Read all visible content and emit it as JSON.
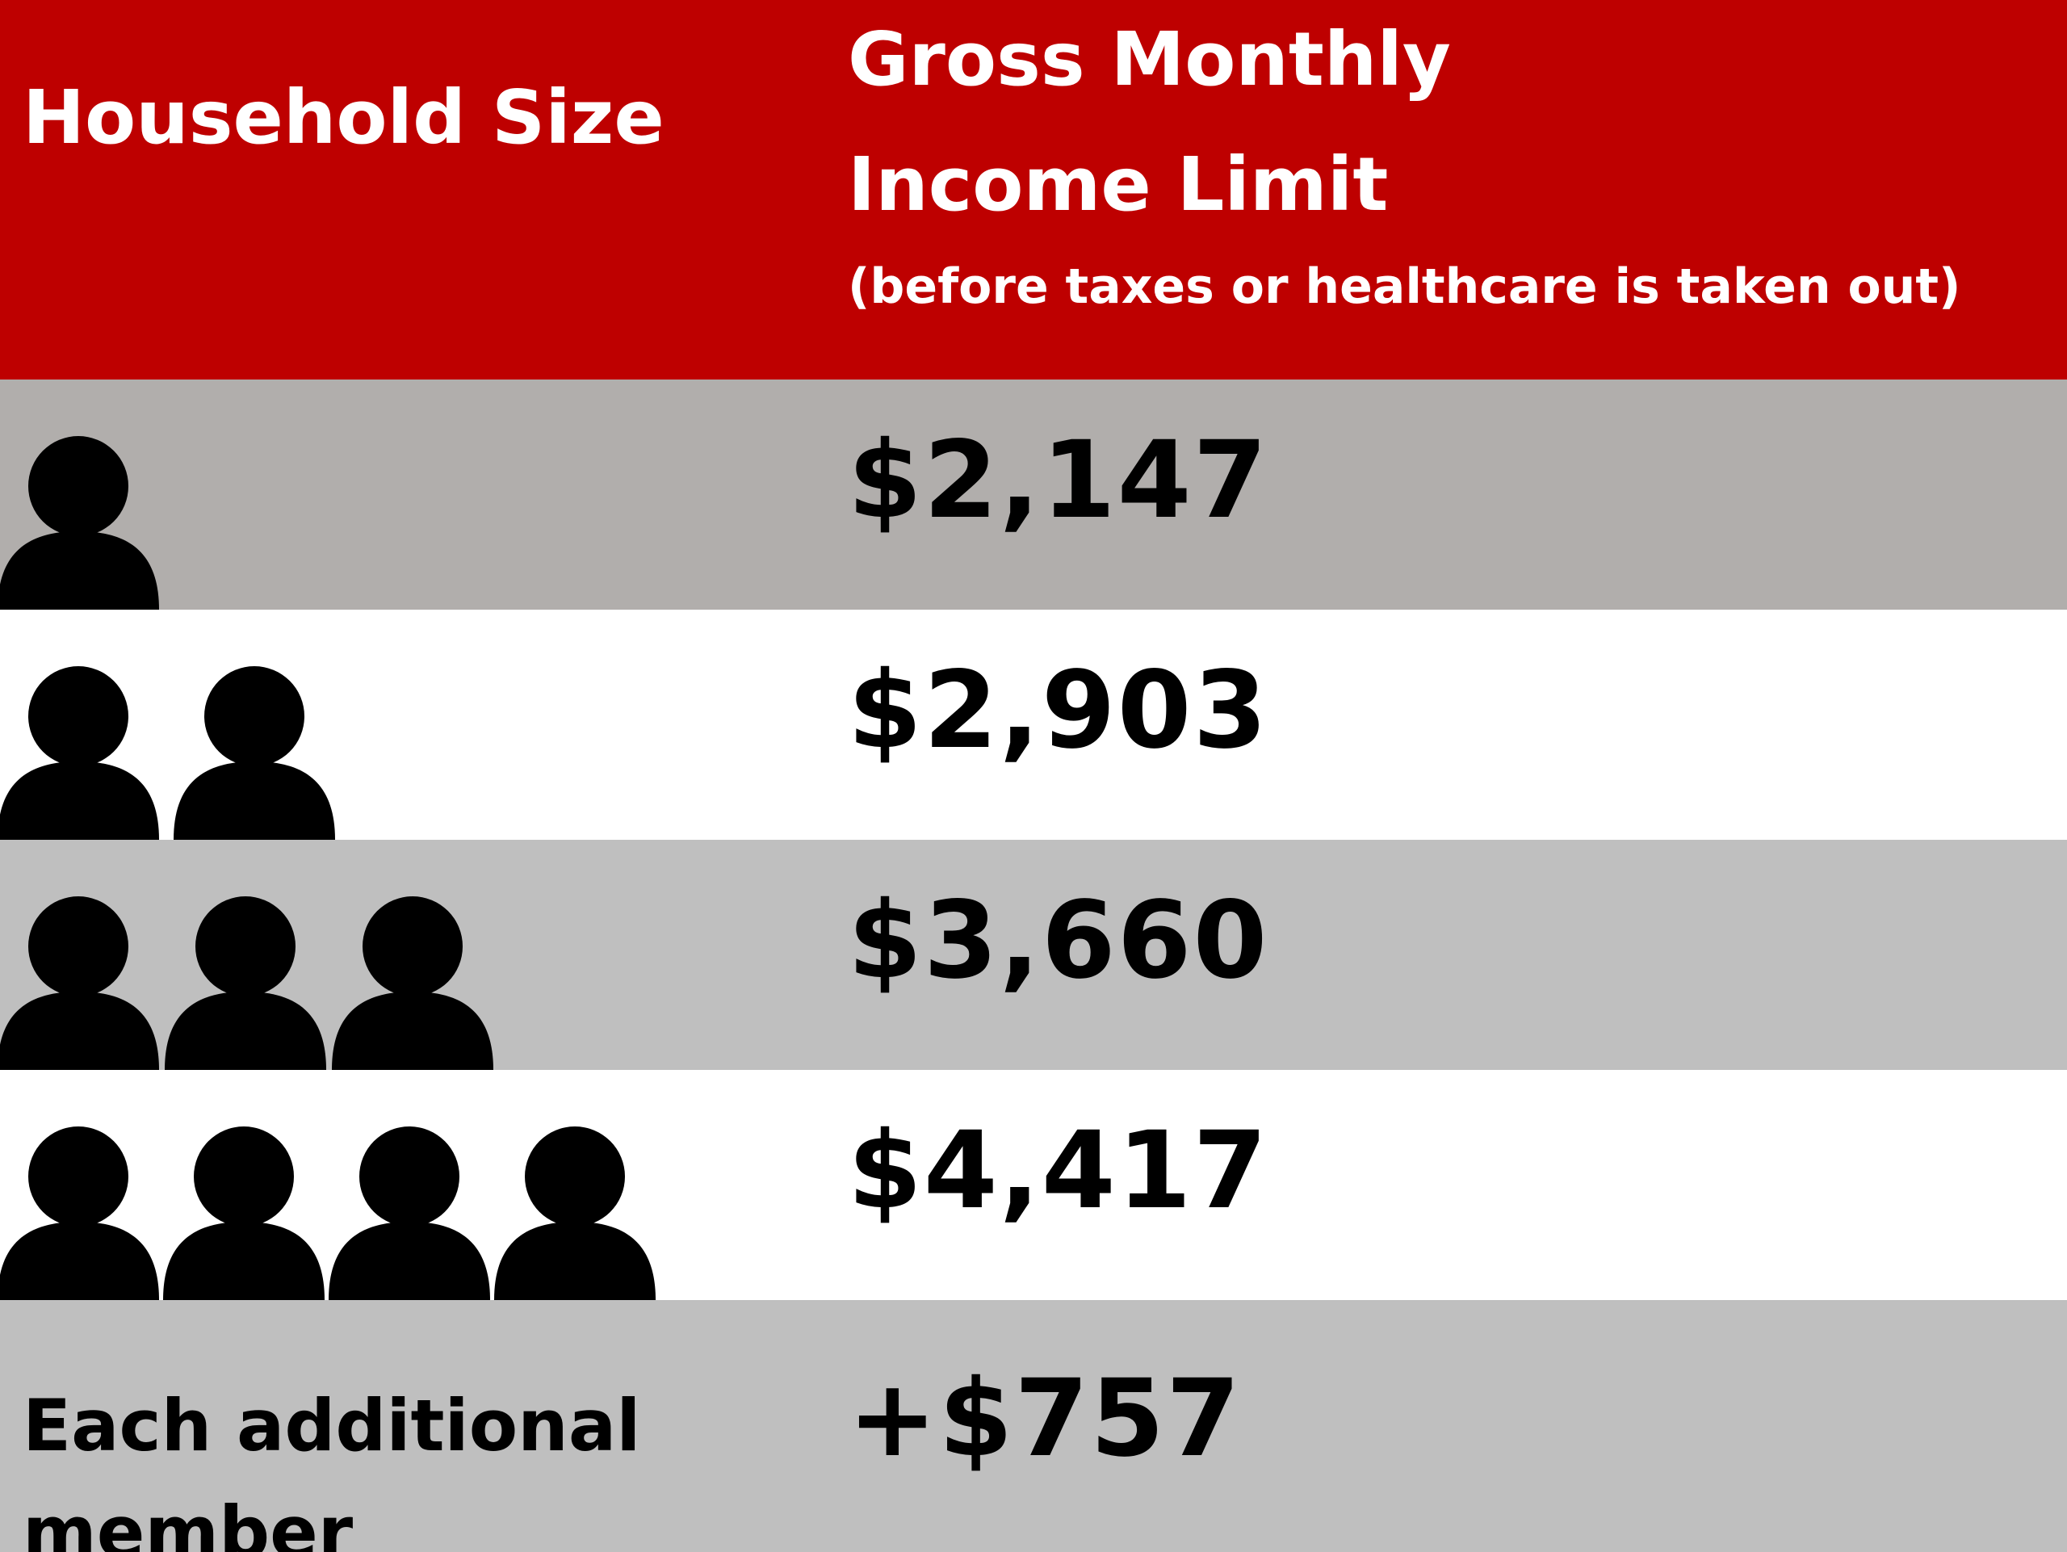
{
  "header": {
    "household_size": "Household Size",
    "income_line1": "Gross Monthly",
    "income_line2": "Income Limit",
    "income_note": "(before taxes or healthcare is taken out)"
  },
  "rows": [
    {
      "people": 1,
      "amount": "$2,147"
    },
    {
      "people": 2,
      "amount": "$2,903"
    },
    {
      "people": 3,
      "amount": "$3,660"
    },
    {
      "people": 4,
      "amount": "$4,417"
    },
    {
      "label": "Each additional member",
      "amount": "+$757"
    }
  ],
  "colors": {
    "header_bg": "#be0000",
    "row_gray_first": "#b1aeac",
    "row_gray": "#bfbfbf",
    "row_white": "#ffffff",
    "icon": "#000000"
  },
  "icons": [
    "person-icon"
  ]
}
